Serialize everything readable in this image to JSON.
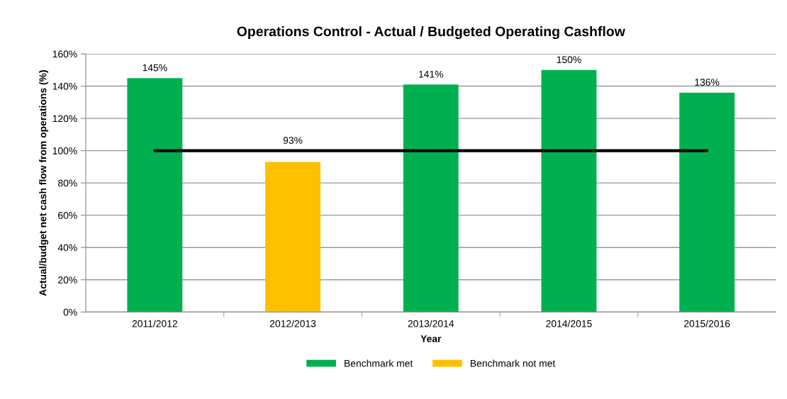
{
  "chart_data": {
    "type": "bar",
    "title": "Operations Control - Actual / Budgeted Operating Cashflow",
    "xlabel": "Year",
    "ylabel": "Actual/budget net cash flow from operations (%)",
    "categories": [
      "2011/2012",
      "2012/2013",
      "2013/2014",
      "2014/2015",
      "2015/2016"
    ],
    "series": [
      {
        "name": "Benchmark met",
        "color": "#00b050",
        "values": [
          145,
          null,
          141,
          150,
          136
        ],
        "value_labels": [
          "145%",
          null,
          "141%",
          "150%",
          "136%"
        ]
      },
      {
        "name": "Benchmark not met",
        "color": "#ffc000",
        "values": [
          null,
          93,
          null,
          null,
          null
        ],
        "value_labels": [
          null,
          "93%",
          null,
          null,
          null
        ]
      },
      {
        "type": "line",
        "color": "#000000",
        "values": [
          100,
          100,
          100,
          100,
          100
        ]
      }
    ],
    "ylim": [
      0,
      160
    ],
    "yticks": [
      {
        "value": 0,
        "label": "0%"
      },
      {
        "value": 20,
        "label": "20%"
      },
      {
        "value": 40,
        "label": "40%"
      },
      {
        "value": 60,
        "label": "60%"
      },
      {
        "value": 80,
        "label": "80%"
      },
      {
        "value": 100,
        "label": "100%"
      },
      {
        "value": 120,
        "label": "120%"
      },
      {
        "value": 140,
        "label": "140%"
      },
      {
        "value": 160,
        "label": "160%"
      }
    ],
    "grid": "y",
    "legend": "bottom",
    "marker": "none",
    "line_style": "solid"
  }
}
